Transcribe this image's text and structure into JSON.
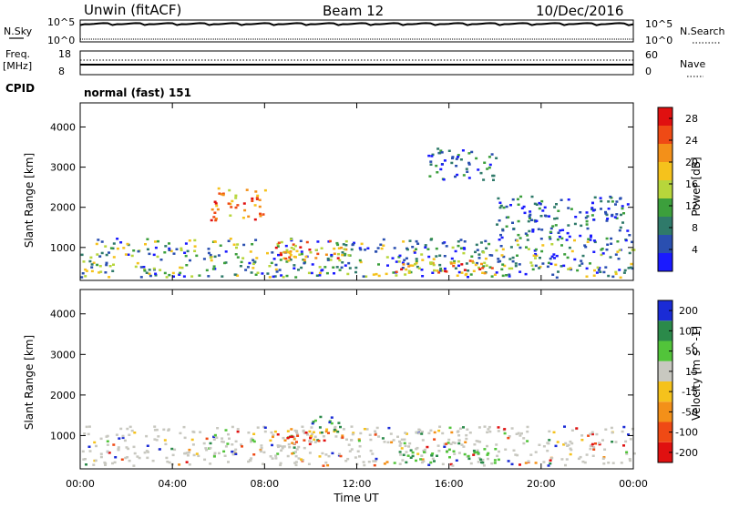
{
  "header": {
    "station": "Unwin (fitACF)",
    "beam": "Beam 12",
    "date": "10/Dec/2016"
  },
  "nsky_panel": {
    "left_label": "N.Sky",
    "right_label": "N.Search",
    "left_ticks": [
      "10^5",
      "10^0"
    ],
    "right_ticks": [
      "10^5",
      "10^0"
    ]
  },
  "freq_panel": {
    "left_label_1": "Freq.",
    "left_label_2": "[MHz]",
    "right_label": "Nave",
    "left_ticks": [
      "18",
      "8"
    ],
    "right_ticks": [
      "60",
      "0"
    ]
  },
  "cpid": {
    "label": "CPID",
    "value": "normal (fast) 151"
  },
  "chart_data": [
    {
      "type": "heatmap",
      "title": "",
      "xlabel": "Time UT",
      "ylabel": "Slant Range [km]",
      "xlim_hours": [
        0,
        24
      ],
      "ylim": [
        180,
        4600
      ],
      "x_ticks": [
        "00:00",
        "04:00",
        "08:00",
        "12:00",
        "16:00",
        "20:00",
        "00:00"
      ],
      "y_ticks": [
        1000,
        2000,
        3000,
        4000
      ],
      "colorbar": {
        "label": "Power [dB]",
        "ticks": [
          4,
          8,
          12,
          16,
          20,
          24,
          28
        ],
        "range": [
          0,
          30
        ],
        "colors": [
          "#1a1aff",
          "#2a4fb0",
          "#2f7a6a",
          "#3c9f3c",
          "#b7d63b",
          "#f5c21c",
          "#f39019",
          "#ef4a15",
          "#e01010"
        ]
      },
      "echo_regions": [
        {
          "t_start": 0.0,
          "t_end": 24.0,
          "r_min": 280,
          "r_max": 1250,
          "level": "low-mid"
        },
        {
          "t_start": 5.5,
          "t_end": 8.0,
          "r_min": 1700,
          "r_max": 2500,
          "level": "high"
        },
        {
          "t_start": 8.2,
          "t_end": 11.5,
          "r_min": 700,
          "r_max": 1200,
          "level": "high"
        },
        {
          "t_start": 13.5,
          "t_end": 18.0,
          "r_min": 350,
          "r_max": 700,
          "level": "high"
        },
        {
          "t_start": 15.0,
          "t_end": 18.0,
          "r_min": 2700,
          "r_max": 3500,
          "level": "low"
        },
        {
          "t_start": 18.0,
          "t_end": 23.8,
          "r_min": 1200,
          "r_max": 2300,
          "level": "low"
        }
      ]
    },
    {
      "type": "heatmap",
      "title": "",
      "xlabel": "Time UT",
      "ylabel": "Slant Range [km]",
      "xlim_hours": [
        0,
        24
      ],
      "ylim": [
        180,
        4600
      ],
      "x_ticks": [
        "00:00",
        "04:00",
        "08:00",
        "12:00",
        "16:00",
        "20:00",
        "00:00"
      ],
      "y_ticks": [
        1000,
        2000,
        3000,
        4000
      ],
      "colorbar": {
        "label": "Velocity [m s^-1]",
        "ticks": [
          200,
          100,
          50,
          15,
          -15,
          -50,
          -100,
          -200
        ],
        "colors": [
          "#1a2bd6",
          "#2b8a4a",
          "#52c43a",
          "#c8c8c0",
          "#f5c21c",
          "#f39019",
          "#ef4a15",
          "#e01010"
        ]
      },
      "echo_regions": [
        {
          "t_start": 0.0,
          "t_end": 24.0,
          "r_min": 280,
          "r_max": 1250,
          "level": "near-zero"
        },
        {
          "t_start": 8.2,
          "t_end": 11.5,
          "r_min": 800,
          "r_max": 1200,
          "level": "negative"
        },
        {
          "t_start": 10.0,
          "t_end": 11.2,
          "r_min": 1000,
          "r_max": 1500,
          "level": "positive"
        },
        {
          "t_start": 13.5,
          "t_end": 18.0,
          "r_min": 350,
          "r_max": 700,
          "level": "small-positive"
        }
      ]
    }
  ]
}
